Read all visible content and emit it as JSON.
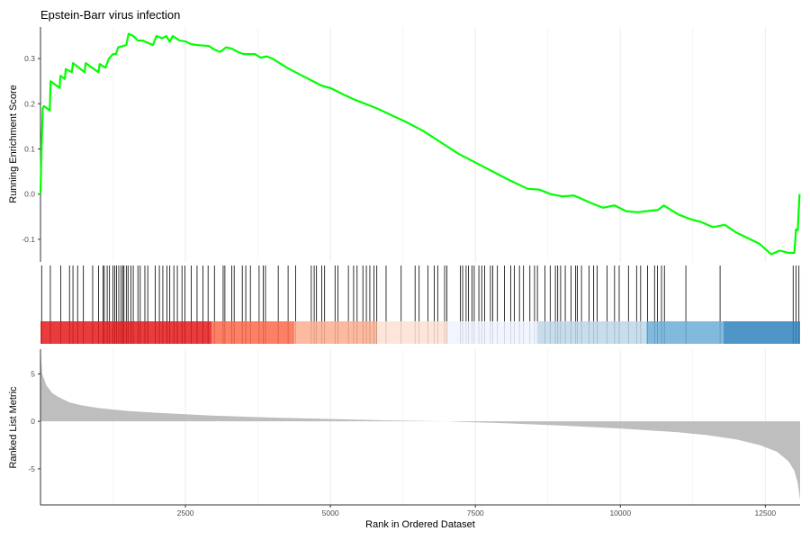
{
  "chart_data": {
    "type": "line",
    "title": "Epstein-Barr virus infection",
    "xlabel": "Rank in Ordered Dataset",
    "xlim": [
      0,
      13100
    ],
    "x_ticks": [
      2500,
      5000,
      7500,
      10000,
      12500
    ],
    "grid": true,
    "colors": {
      "es_line": "#00ff00",
      "hit_line": "#000000",
      "metric_fill": "#bebebe",
      "grid": "#ebebeb",
      "axis": "#333333"
    },
    "running_es": {
      "ylabel": "Running Enrichment Score",
      "ylim": [
        -0.15,
        0.37
      ],
      "y_ticks": [
        -0.1,
        0.0,
        0.1,
        0.2,
        0.3
      ],
      "y_tick_labels": [
        "-0.1",
        "0.0",
        "0.1",
        "0.2",
        "0.3"
      ],
      "points": [
        [
          0,
          0
        ],
        [
          12,
          0.07
        ],
        [
          25,
          0.13
        ],
        [
          40,
          0.19
        ],
        [
          60,
          0.195
        ],
        [
          160,
          0.185
        ],
        [
          175,
          0.25
        ],
        [
          330,
          0.235
        ],
        [
          345,
          0.262
        ],
        [
          420,
          0.255
        ],
        [
          435,
          0.277
        ],
        [
          540,
          0.27
        ],
        [
          560,
          0.29
        ],
        [
          660,
          0.28
        ],
        [
          760,
          0.27
        ],
        [
          780,
          0.29
        ],
        [
          890,
          0.28
        ],
        [
          1000,
          0.27
        ],
        [
          1020,
          0.288
        ],
        [
          1120,
          0.28
        ],
        [
          1180,
          0.3
        ],
        [
          1250,
          0.31
        ],
        [
          1300,
          0.31
        ],
        [
          1340,
          0.325
        ],
        [
          1480,
          0.33
        ],
        [
          1520,
          0.355
        ],
        [
          1600,
          0.35
        ],
        [
          1680,
          0.34
        ],
        [
          1760,
          0.34
        ],
        [
          1850,
          0.335
        ],
        [
          1940,
          0.33
        ],
        [
          2000,
          0.35
        ],
        [
          2100,
          0.345
        ],
        [
          2170,
          0.35
        ],
        [
          2230,
          0.337
        ],
        [
          2280,
          0.35
        ],
        [
          2400,
          0.34
        ],
        [
          2500,
          0.338
        ],
        [
          2600,
          0.332
        ],
        [
          2700,
          0.33
        ],
        [
          2900,
          0.328
        ],
        [
          3000,
          0.32
        ],
        [
          3100,
          0.315
        ],
        [
          3200,
          0.325
        ],
        [
          3300,
          0.322
        ],
        [
          3400,
          0.315
        ],
        [
          3500,
          0.31
        ],
        [
          3700,
          0.31
        ],
        [
          3800,
          0.302
        ],
        [
          3900,
          0.305
        ],
        [
          4000,
          0.3
        ],
        [
          4250,
          0.28
        ],
        [
          4500,
          0.263
        ],
        [
          4700,
          0.25
        ],
        [
          4850,
          0.24
        ],
        [
          5000,
          0.235
        ],
        [
          5200,
          0.222
        ],
        [
          5400,
          0.21
        ],
        [
          5600,
          0.2
        ],
        [
          5800,
          0.19
        ],
        [
          6000,
          0.178
        ],
        [
          6300,
          0.16
        ],
        [
          6600,
          0.14
        ],
        [
          6900,
          0.115
        ],
        [
          7200,
          0.09
        ],
        [
          7500,
          0.07
        ],
        [
          7800,
          0.05
        ],
        [
          8100,
          0.03
        ],
        [
          8400,
          0.012
        ],
        [
          8600,
          0.01
        ],
        [
          8800,
          0.0
        ],
        [
          9000,
          -0.005
        ],
        [
          9200,
          -0.003
        ],
        [
          9500,
          -0.02
        ],
        [
          9700,
          -0.03
        ],
        [
          9900,
          -0.025
        ],
        [
          10100,
          -0.038
        ],
        [
          10300,
          -0.04
        ],
        [
          10500,
          -0.037
        ],
        [
          10650,
          -0.035
        ],
        [
          10750,
          -0.025
        ],
        [
          11000,
          -0.045
        ],
        [
          11200,
          -0.055
        ],
        [
          11400,
          -0.062
        ],
        [
          11600,
          -0.073
        ],
        [
          11800,
          -0.068
        ],
        [
          12000,
          -0.085
        ],
        [
          12400,
          -0.11
        ],
        [
          12600,
          -0.133
        ],
        [
          12750,
          -0.125
        ],
        [
          12900,
          -0.13
        ],
        [
          13000,
          -0.13
        ],
        [
          13030,
          -0.078
        ],
        [
          13060,
          -0.08
        ],
        [
          13090,
          0.0
        ]
      ]
    },
    "hits": [
      20,
      170,
      350,
      500,
      560,
      640,
      740,
      900,
      1000,
      1080,
      1100,
      1150,
      1190,
      1250,
      1280,
      1310,
      1350,
      1390,
      1420,
      1440,
      1480,
      1510,
      1560,
      1600,
      1680,
      1720,
      1800,
      1850,
      1980,
      2050,
      2110,
      2180,
      2230,
      2300,
      2360,
      2440,
      2490,
      2600,
      2700,
      2800,
      2890,
      3000,
      3150,
      3180,
      3300,
      3340,
      3480,
      3540,
      3620,
      3770,
      3840,
      3880,
      4100,
      4270,
      4400,
      4670,
      4720,
      4760,
      4850,
      4900,
      5080,
      5130,
      5310,
      5400,
      5460,
      5560,
      5620,
      5680,
      5750,
      5800,
      5960,
      6220,
      6460,
      6530,
      6680,
      6790,
      6850,
      6970,
      7010,
      7240,
      7280,
      7340,
      7380,
      7440,
      7480,
      7560,
      7610,
      7660,
      7760,
      7800,
      7880,
      8000,
      8110,
      8170,
      8260,
      8330,
      8440,
      8520,
      8570,
      8700,
      8790,
      8880,
      8920,
      8970,
      9050,
      9150,
      9230,
      9260,
      9330,
      9460,
      9540,
      9600,
      9770,
      9900,
      9980,
      10140,
      10280,
      10350,
      10470,
      10590,
      10640,
      10710,
      10760,
      11130,
      11720,
      12980,
      13030,
      13080
    ],
    "color_bands": [
      {
        "from": 0,
        "to": 2950,
        "color": "#e41a1c"
      },
      {
        "from": 2950,
        "to": 4380,
        "color": "#fb6a4a"
      },
      {
        "from": 4380,
        "to": 5800,
        "color": "#fcae91"
      },
      {
        "from": 5800,
        "to": 7030,
        "color": "#fee0d2"
      },
      {
        "from": 7030,
        "to": 8580,
        "color": "#eff3ff"
      },
      {
        "from": 8580,
        "to": 10450,
        "color": "#bdd7e7"
      },
      {
        "from": 10450,
        "to": 11780,
        "color": "#6baed6"
      },
      {
        "from": 11780,
        "to": 13100,
        "color": "#3182bd"
      }
    ],
    "ranked_metric": {
      "ylabel": "Ranked List Metric",
      "ylim": [
        -8.8,
        7.6
      ],
      "y_ticks": [
        -5,
        0,
        5
      ],
      "y_tick_labels": [
        "-5",
        "0",
        "5"
      ],
      "points": [
        [
          0,
          7.5
        ],
        [
          30,
          5.0
        ],
        [
          100,
          3.8
        ],
        [
          200,
          3.0
        ],
        [
          300,
          2.6
        ],
        [
          500,
          2.0
        ],
        [
          700,
          1.7
        ],
        [
          1000,
          1.4
        ],
        [
          1500,
          1.1
        ],
        [
          2000,
          0.9
        ],
        [
          2500,
          0.75
        ],
        [
          3000,
          0.6
        ],
        [
          4000,
          0.4
        ],
        [
          5000,
          0.25
        ],
        [
          6000,
          0.1
        ],
        [
          7000,
          0.0
        ],
        [
          8000,
          -0.2
        ],
        [
          9000,
          -0.45
        ],
        [
          10000,
          -0.75
        ],
        [
          10500,
          -0.95
        ],
        [
          11000,
          -1.15
        ],
        [
          11500,
          -1.45
        ],
        [
          12000,
          -1.9
        ],
        [
          12400,
          -2.5
        ],
        [
          12700,
          -3.2
        ],
        [
          12900,
          -4.2
        ],
        [
          13000,
          -5.2
        ],
        [
          13060,
          -6.5
        ],
        [
          13100,
          -8.3
        ]
      ]
    }
  }
}
